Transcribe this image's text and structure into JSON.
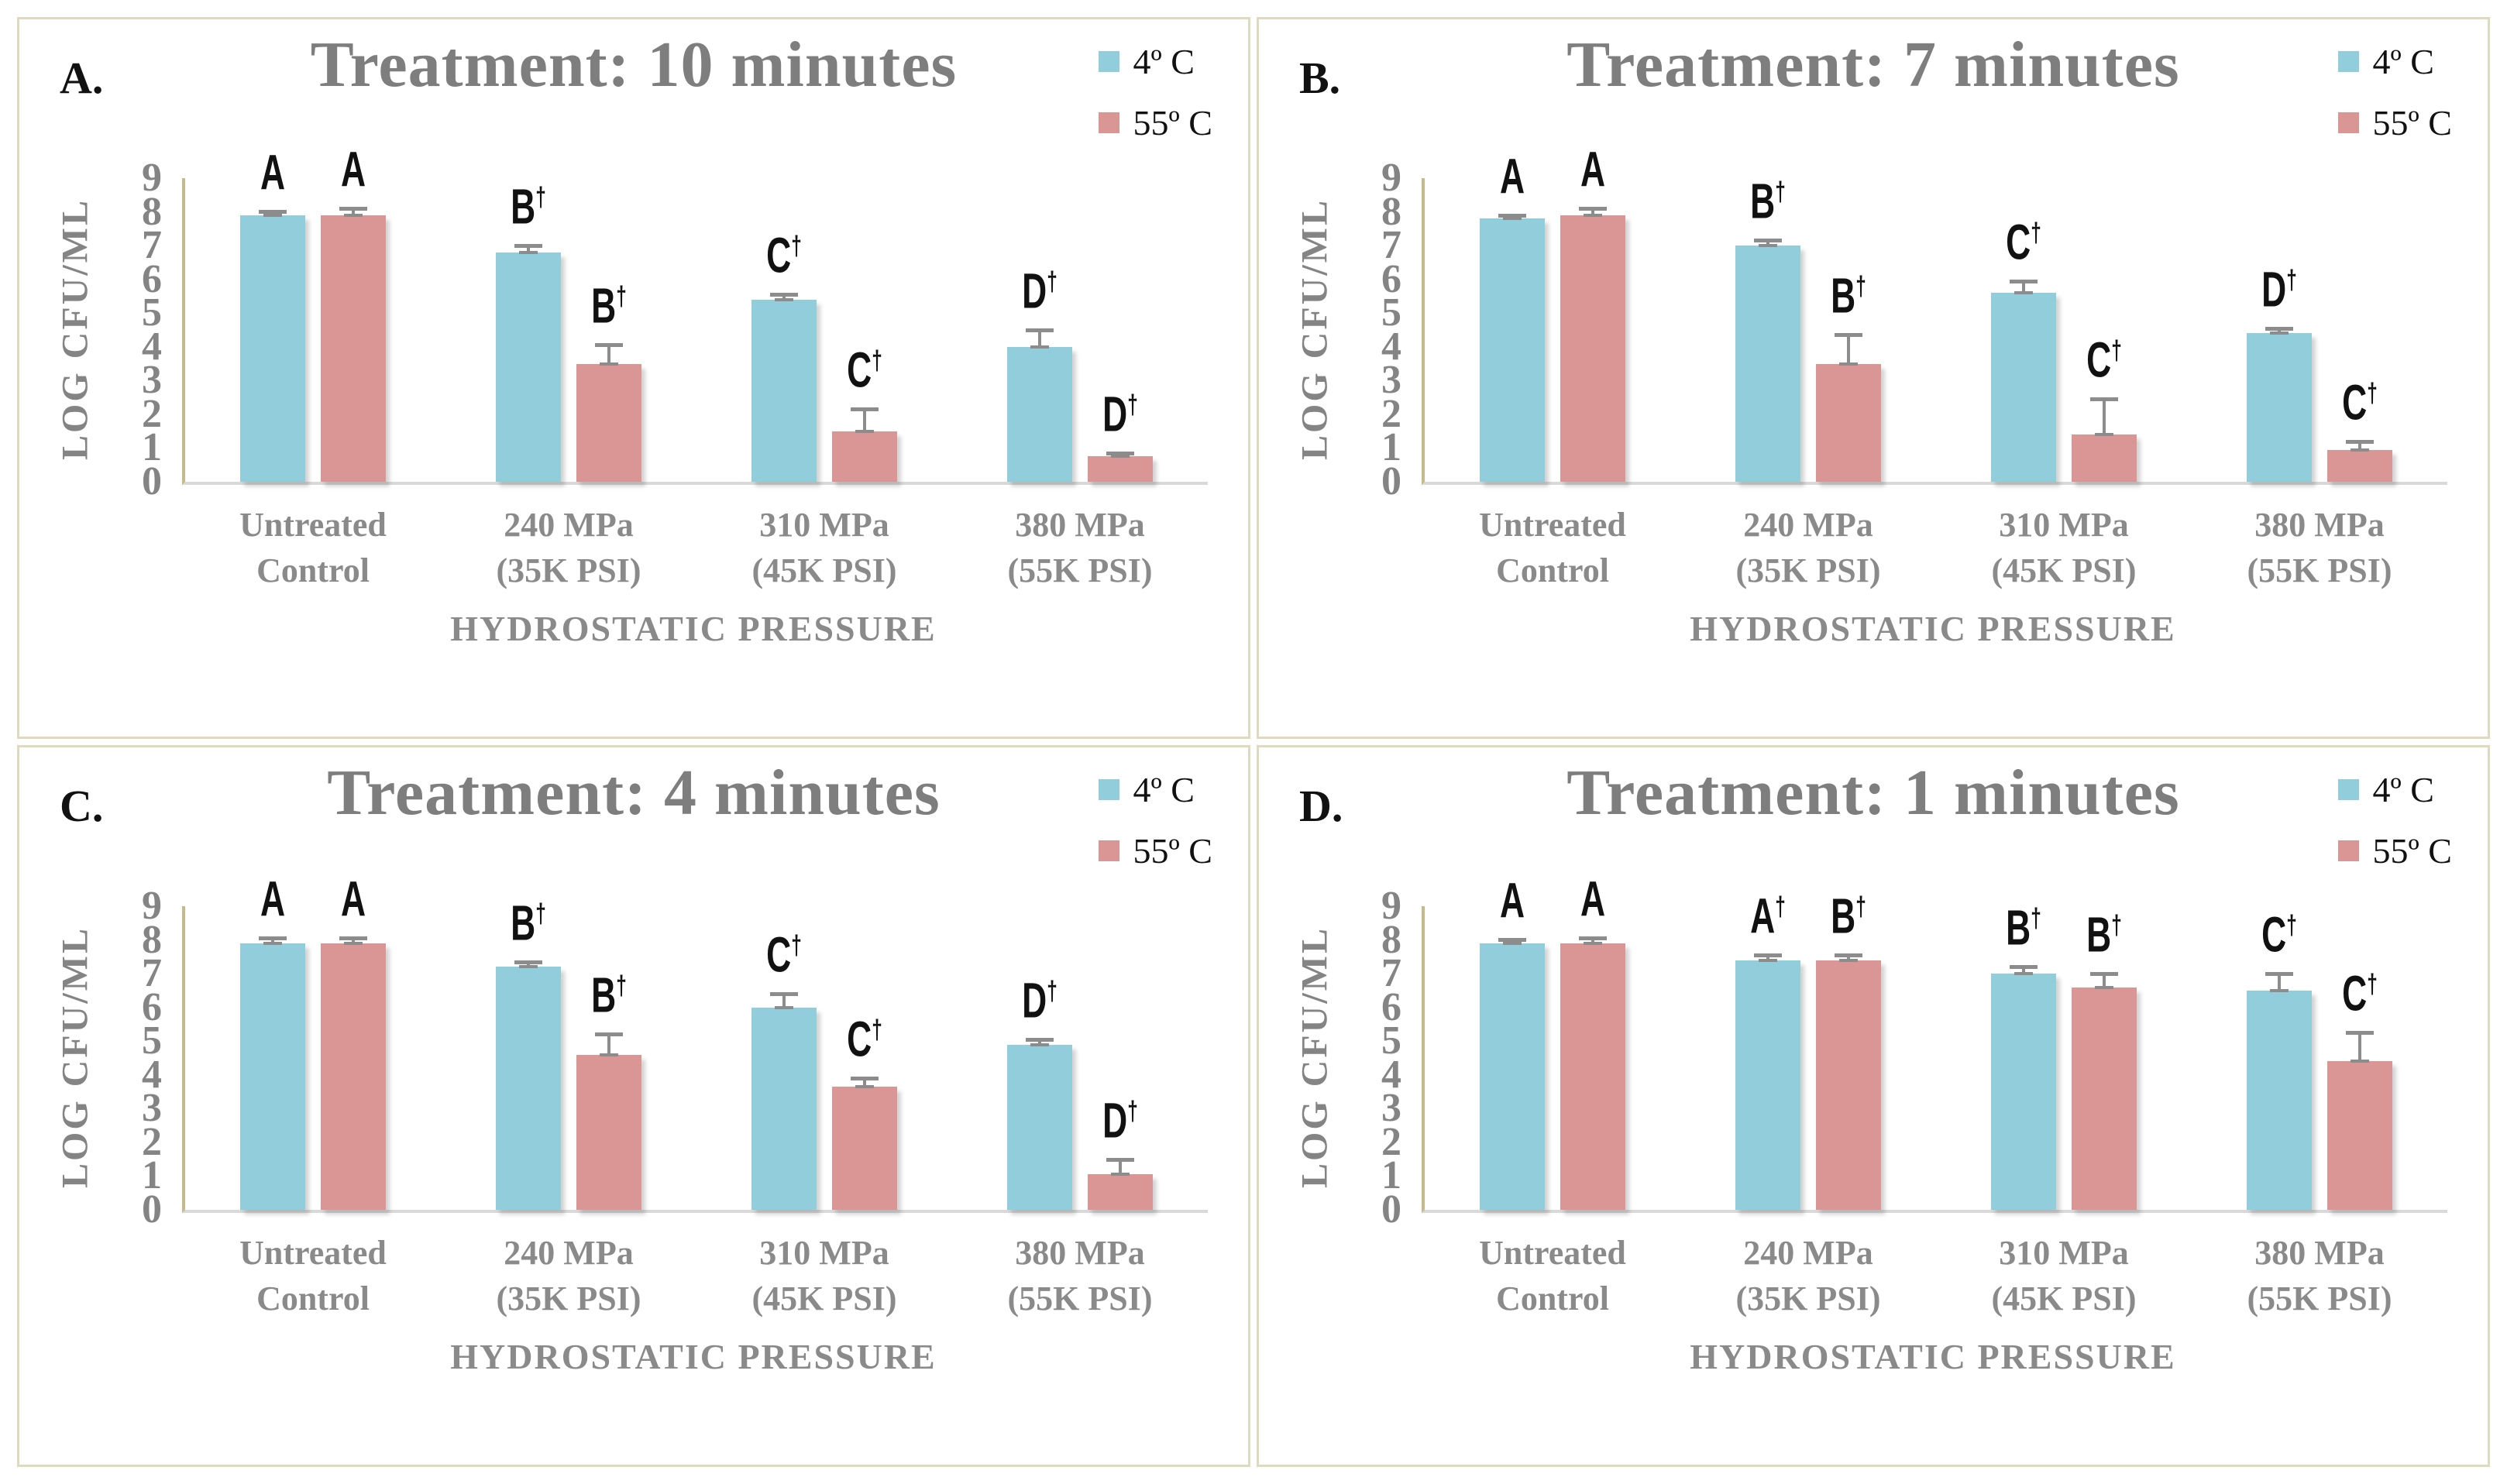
{
  "figure": {
    "panels_order": [
      "A",
      "B",
      "C",
      "D"
    ],
    "background": "#ffffff",
    "panel_border_color": "#DFD9BE"
  },
  "colors": {
    "series_4c": "#92CDDC",
    "series_55c": "#D99694",
    "title_gray": "#7E7E7E",
    "axis_text_gray": "#848484",
    "y_axis_line_tan": "#C6BA8B",
    "x_baseline_gray": "#D9D9D9",
    "error_bar_gray": "#8C8C8C",
    "annotation_black": "#111111"
  },
  "chart_data": [
    {
      "panel_label": "A.",
      "title": "Treatment: 10 minutes",
      "type": "bar",
      "xlabel": "HYDROSTATIC PRESSURE",
      "ylabel": "LOG CFU/ML",
      "ylim": [
        0,
        9
      ],
      "yticks": [
        0,
        1,
        2,
        3,
        4,
        5,
        6,
        7,
        8,
        9
      ],
      "grid": false,
      "legend_position": "top-right",
      "legend": [
        {
          "label": "4º C",
          "color": "#92CDDC"
        },
        {
          "label": "55º C",
          "color": "#D99694"
        }
      ],
      "categories": [
        [
          "Untreated",
          "Control"
        ],
        [
          "240 MPa",
          "(35K PSI)"
        ],
        [
          "310 MPa",
          "(45K PSI)"
        ],
        [
          "380 MPa",
          "(55K PSI)"
        ]
      ],
      "series": [
        {
          "name": "4º C",
          "color": "#92CDDC",
          "values": [
            7.9,
            6.8,
            5.4,
            4.0
          ],
          "errors": [
            0.15,
            0.25,
            0.2,
            0.55
          ],
          "letters": [
            {
              "t": "A",
              "d": ""
            },
            {
              "t": "B",
              "d": "†"
            },
            {
              "t": "C",
              "d": "†"
            },
            {
              "t": "D",
              "d": "†"
            }
          ]
        },
        {
          "name": "55º C",
          "color": "#D99694",
          "values": [
            7.9,
            3.5,
            1.5,
            0.75
          ],
          "errors": [
            0.25,
            0.6,
            0.7,
            0.15
          ],
          "letters": [
            {
              "t": "A",
              "d": ""
            },
            {
              "t": "B",
              "d": "†"
            },
            {
              "t": "C",
              "d": "†"
            },
            {
              "t": "D",
              "d": "†"
            }
          ]
        }
      ]
    },
    {
      "panel_label": "B.",
      "title": "Treatment: 7 minutes",
      "type": "bar",
      "xlabel": "HYDROSTATIC PRESSURE",
      "ylabel": "LOG CFU/ML",
      "ylim": [
        0,
        9
      ],
      "yticks": [
        0,
        1,
        2,
        3,
        4,
        5,
        6,
        7,
        8,
        9
      ],
      "grid": false,
      "legend_position": "top-right",
      "legend": [
        {
          "label": "4º C",
          "color": "#92CDDC"
        },
        {
          "label": "55º C",
          "color": "#D99694"
        }
      ],
      "categories": [
        [
          "Untreated",
          "Control"
        ],
        [
          "240 MPa",
          "(35K PSI)"
        ],
        [
          "310 MPa",
          "(45K PSI)"
        ],
        [
          "380 MPa",
          "(55K PSI)"
        ]
      ],
      "series": [
        {
          "name": "4º C",
          "color": "#92CDDC",
          "values": [
            7.8,
            7.0,
            5.6,
            4.4
          ],
          "errors": [
            0.15,
            0.2,
            0.4,
            0.2
          ],
          "letters": [
            {
              "t": "A",
              "d": ""
            },
            {
              "t": "B",
              "d": "†"
            },
            {
              "t": "C",
              "d": "†"
            },
            {
              "t": "D",
              "d": "†"
            }
          ]
        },
        {
          "name": "55º C",
          "color": "#D99694",
          "values": [
            7.9,
            3.5,
            1.4,
            0.95
          ],
          "errors": [
            0.25,
            0.9,
            1.1,
            0.3
          ],
          "letters": [
            {
              "t": "A",
              "d": ""
            },
            {
              "t": "B",
              "d": "†"
            },
            {
              "t": "C",
              "d": "†"
            },
            {
              "t": "C",
              "d": "†"
            }
          ]
        }
      ]
    },
    {
      "panel_label": "C.",
      "title": "Treatment: 4 minutes",
      "type": "bar",
      "xlabel": "HYDROSTATIC PRESSURE",
      "ylabel": "LOG CFU/ML",
      "ylim": [
        0,
        9
      ],
      "yticks": [
        0,
        1,
        2,
        3,
        4,
        5,
        6,
        7,
        8,
        9
      ],
      "grid": false,
      "legend_position": "top-right",
      "legend": [
        {
          "label": "4º C",
          "color": "#92CDDC"
        },
        {
          "label": "55º C",
          "color": "#D99694"
        }
      ],
      "categories": [
        [
          "Untreated",
          "Control"
        ],
        [
          "240 MPa",
          "(35K PSI)"
        ],
        [
          "310 MPa",
          "(45K PSI)"
        ],
        [
          "380 MPa",
          "(55K PSI)"
        ]
      ],
      "series": [
        {
          "name": "4º C",
          "color": "#92CDDC",
          "values": [
            7.9,
            7.2,
            6.0,
            4.9
          ],
          "errors": [
            0.2,
            0.2,
            0.45,
            0.2
          ],
          "letters": [
            {
              "t": "A",
              "d": ""
            },
            {
              "t": "B",
              "d": "†"
            },
            {
              "t": "C",
              "d": "†"
            },
            {
              "t": "D",
              "d": "†"
            }
          ]
        },
        {
          "name": "55º C",
          "color": "#D99694",
          "values": [
            7.9,
            4.6,
            3.65,
            1.05
          ],
          "errors": [
            0.2,
            0.65,
            0.3,
            0.5
          ],
          "letters": [
            {
              "t": "A",
              "d": ""
            },
            {
              "t": "B",
              "d": "†"
            },
            {
              "t": "C",
              "d": "†"
            },
            {
              "t": "D",
              "d": "†"
            }
          ]
        }
      ]
    },
    {
      "panel_label": "D.",
      "title": "Treatment: 1 minutes",
      "type": "bar",
      "xlabel": "HYDROSTATIC PRESSURE",
      "ylabel": "LOG CFU/ML",
      "ylim": [
        0,
        9
      ],
      "yticks": [
        0,
        1,
        2,
        3,
        4,
        5,
        6,
        7,
        8,
        9
      ],
      "grid": false,
      "legend_position": "top-right",
      "legend": [
        {
          "label": "4º C",
          "color": "#92CDDC"
        },
        {
          "label": "55º C",
          "color": "#D99694"
        }
      ],
      "categories": [
        [
          "Untreated",
          "Control"
        ],
        [
          "240 MPa",
          "(35K PSI)"
        ],
        [
          "310 MPa",
          "(45K PSI)"
        ],
        [
          "380 MPa",
          "(55K PSI)"
        ]
      ],
      "series": [
        {
          "name": "4º C",
          "color": "#92CDDC",
          "values": [
            7.9,
            7.4,
            7.0,
            6.5
          ],
          "errors": [
            0.15,
            0.2,
            0.25,
            0.55
          ],
          "letters": [
            {
              "t": "A",
              "d": ""
            },
            {
              "t": "A",
              "d": "†"
            },
            {
              "t": "B",
              "d": "†"
            },
            {
              "t": "C",
              "d": "†"
            }
          ]
        },
        {
          "name": "55º C",
          "color": "#D99694",
          "values": [
            7.9,
            7.4,
            6.6,
            4.4
          ],
          "errors": [
            0.2,
            0.2,
            0.45,
            0.9
          ],
          "letters": [
            {
              "t": "A",
              "d": ""
            },
            {
              "t": "B",
              "d": "†"
            },
            {
              "t": "B",
              "d": "†"
            },
            {
              "t": "C",
              "d": "†"
            }
          ]
        }
      ]
    }
  ]
}
